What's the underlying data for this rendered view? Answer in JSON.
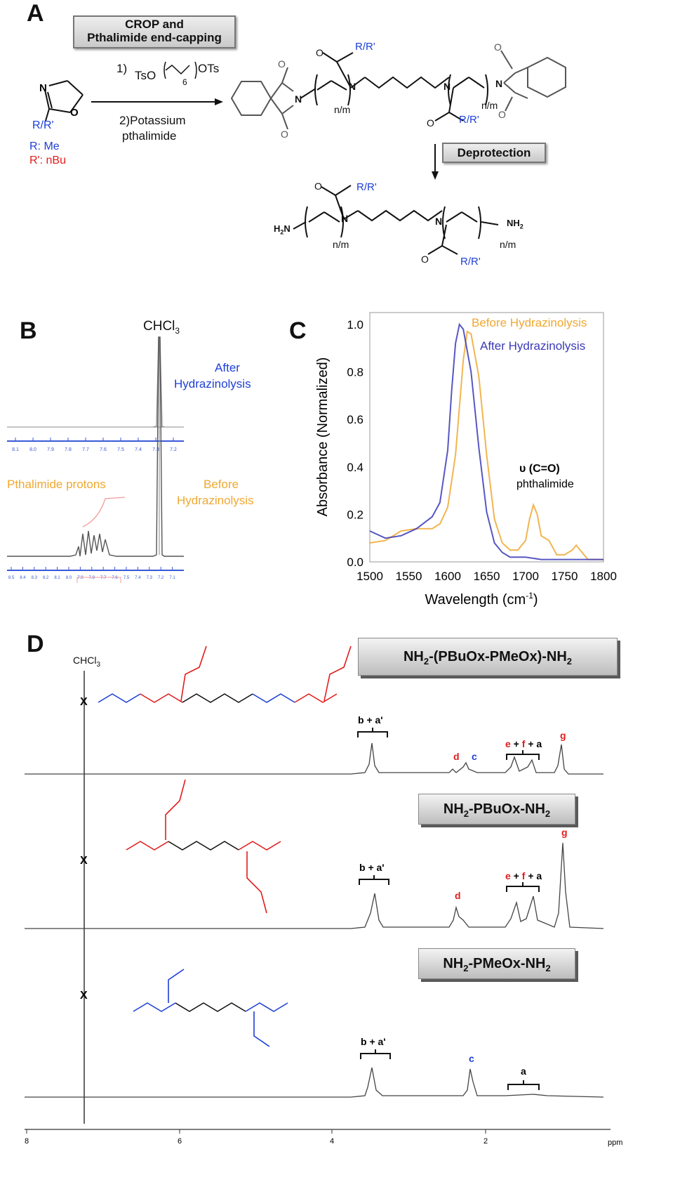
{
  "panels": {
    "a": "A",
    "b": "B",
    "c": "C",
    "d": "D"
  },
  "scheme": {
    "box1_line1": "CROP and",
    "box1_line2": "Pthalimide end-capping",
    "step1_num": "1)",
    "step1_reagent_left": "TsO",
    "step1_reagent_sub": "6",
    "step1_reagent_right": "OTs",
    "step2_line1": "2)Potassium",
    "step2_line2": "pthalimide",
    "monomer_rr": "R/R'",
    "r_def": "R: Me",
    "rp_def": "R': nBu",
    "deprotection": "Deprotection",
    "nm": "n/m",
    "nh2": "NH",
    "h2n": "H",
    "rlabel": "R/R'"
  },
  "panel_b": {
    "chcl3": "CHCl",
    "chcl3_sub": "3",
    "after_line1": "After",
    "after_line2": "Hydrazinolysis",
    "before_line1": "Before",
    "before_line2": "Hydrazinolysis",
    "pthalimide": "Pthalimide protons",
    "top_ticks": [
      "8.1",
      "8.0",
      "7.9",
      "7.8",
      "7.7",
      "7.6",
      "7.5",
      "7.4",
      "7.3",
      "7.2"
    ],
    "bottom_ticks": [
      "8.5",
      "8.4",
      "8.3",
      "8.2",
      "8.1",
      "8.0",
      "7.9",
      "7.8",
      "7.7",
      "7.6",
      "7.5",
      "7.4",
      "7.3",
      "7.2",
      "7.1"
    ]
  },
  "chart_data": {
    "type": "line",
    "xlabel": "Wavelength (cm-1)",
    "ylabel": "Absorbance (Normalized)",
    "xlim": [
      1500,
      1800
    ],
    "ylim": [
      0,
      1.05
    ],
    "x_ticks": [
      "1500",
      "1550",
      "1600",
      "1650",
      "1700",
      "1750",
      "1800"
    ],
    "y_ticks": [
      "0.0",
      "0.2",
      "0.4",
      "0.6",
      "0.8",
      "1.0"
    ],
    "annotation_line1": "υ (C=O)",
    "annotation_line2": "phthalimide",
    "series": [
      {
        "name": "Before Hydrazinolysis",
        "color": "#f0a830",
        "x": [
          1500,
          1520,
          1540,
          1560,
          1580,
          1590,
          1600,
          1610,
          1620,
          1625,
          1630,
          1640,
          1650,
          1660,
          1670,
          1680,
          1690,
          1700,
          1705,
          1710,
          1715,
          1720,
          1730,
          1740,
          1750,
          1760,
          1765,
          1770,
          1780,
          1800
        ],
        "y": [
          0.08,
          0.09,
          0.13,
          0.14,
          0.14,
          0.16,
          0.23,
          0.45,
          0.85,
          0.97,
          0.96,
          0.78,
          0.45,
          0.18,
          0.08,
          0.05,
          0.05,
          0.09,
          0.18,
          0.24,
          0.2,
          0.11,
          0.09,
          0.03,
          0.03,
          0.05,
          0.07,
          0.05,
          0.01,
          0.01
        ]
      },
      {
        "name": "After Hydrazinolysis",
        "color": "#3a3ab8",
        "x": [
          1500,
          1520,
          1540,
          1560,
          1580,
          1590,
          1600,
          1605,
          1610,
          1615,
          1620,
          1630,
          1640,
          1650,
          1660,
          1670,
          1680,
          1690,
          1700,
          1720,
          1740,
          1760,
          1780,
          1800
        ],
        "y": [
          0.13,
          0.1,
          0.11,
          0.14,
          0.19,
          0.25,
          0.47,
          0.72,
          0.92,
          1.0,
          0.98,
          0.8,
          0.48,
          0.21,
          0.08,
          0.04,
          0.02,
          0.02,
          0.02,
          0.01,
          0.01,
          0.01,
          0.01,
          0.01
        ]
      }
    ]
  },
  "panel_d": {
    "chcl3": "CHCl",
    "chcl3_sub": "3",
    "x_mark": "X",
    "label1": "NH2-(PBuOx-PMeOx)-NH2",
    "label2": "NH2-PBuOx-NH2",
    "label3": "NH2-PMeOx-NH2",
    "ba": "b + a'",
    "d": "d",
    "c": "c",
    "efa_e": "e",
    "efa_plus1": " + ",
    "efa_f": "f",
    "efa_rest": " + a",
    "g": "g",
    "a": "a",
    "ppm": "ppm",
    "axis_ticks": [
      "8",
      "6",
      "4",
      "2"
    ]
  }
}
